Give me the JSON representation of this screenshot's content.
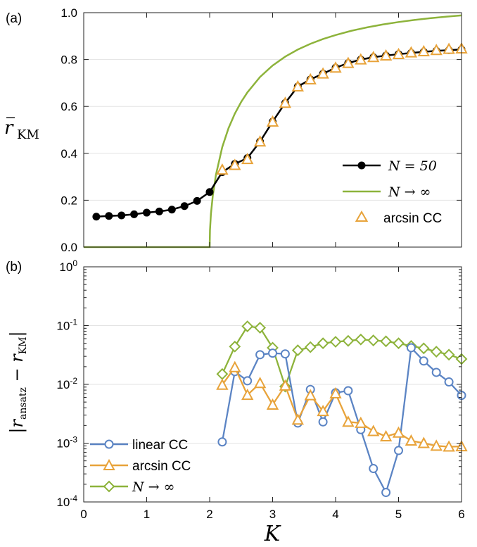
{
  "chart_data": [
    {
      "panel_label": "(a)",
      "type": "line",
      "ylabel": "r̄_KM",
      "xlim": [
        0,
        6
      ],
      "ylim": [
        0,
        1
      ],
      "yticks": [
        "0.0",
        "0.2",
        "0.4",
        "0.6",
        "0.8",
        "1.0"
      ],
      "legend_position": "bottom-right",
      "series": [
        {
          "name": "N = 50",
          "color": "#000000",
          "marker": "filled-circle",
          "x": [
            0.2,
            0.4,
            0.6,
            0.8,
            1.0,
            1.2,
            1.4,
            1.6,
            1.8,
            2.0,
            2.2,
            2.4,
            2.6,
            2.8,
            3.0,
            3.2,
            3.4,
            3.6,
            3.8,
            4.0,
            4.2,
            4.4,
            4.6,
            4.8,
            5.0,
            5.2,
            5.4,
            5.6,
            5.8,
            6.0
          ],
          "y": [
            0.13,
            0.133,
            0.135,
            0.14,
            0.147,
            0.152,
            0.16,
            0.175,
            0.197,
            0.235,
            0.32,
            0.355,
            0.38,
            0.45,
            0.535,
            0.615,
            0.685,
            0.715,
            0.74,
            0.765,
            0.785,
            0.8,
            0.81,
            0.817,
            0.823,
            0.828,
            0.833,
            0.837,
            0.84,
            0.843
          ]
        },
        {
          "name": "N → ∞",
          "color": "#8db33b",
          "marker": "none",
          "x": [
            0,
            2,
            2.005,
            2.02,
            2.05,
            2.1,
            2.2,
            2.3,
            2.4,
            2.5,
            2.6,
            2.8,
            3.0,
            3.2,
            3.4,
            3.6,
            3.8,
            4.0,
            4.25,
            4.5,
            4.75,
            5.0,
            5.25,
            5.5,
            5.75,
            6.0
          ],
          "y": [
            0,
            0,
            0.0707,
            0.1407,
            0.2195,
            0.3086,
            0.4264,
            0.5075,
            0.5693,
            0.619,
            0.6602,
            0.7256,
            0.7746,
            0.8125,
            0.8427,
            0.8672,
            0.8875,
            0.9045,
            0.9226,
            0.9374,
            0.9497,
            0.96,
            0.9687,
            0.9762,
            0.9828,
            0.9885
          ]
        },
        {
          "name": "arcsin CC",
          "color": "#e8a33a",
          "marker": "open-triangle",
          "x": [
            2.2,
            2.4,
            2.6,
            2.8,
            3.0,
            3.2,
            3.4,
            3.6,
            3.8,
            4.0,
            4.2,
            4.4,
            4.6,
            4.8,
            5.0,
            5.2,
            5.4,
            5.6,
            5.8,
            6.0
          ],
          "y": [
            0.33,
            0.35,
            0.375,
            0.45,
            0.535,
            0.615,
            0.685,
            0.715,
            0.74,
            0.765,
            0.785,
            0.8,
            0.81,
            0.817,
            0.823,
            0.83,
            0.835,
            0.84,
            0.845,
            0.847
          ]
        }
      ]
    },
    {
      "panel_label": "(b)",
      "type": "line",
      "xlabel": "K",
      "ylabel": "|r̄_ansatz − r̄_KM|",
      "xlim": [
        0,
        6
      ],
      "ylim": [
        0.0001,
        1
      ],
      "y_scale": "log",
      "xticks": [
        "0",
        "1",
        "2",
        "3",
        "4",
        "5",
        "6"
      ],
      "yticks": [
        "10-4",
        "10-3",
        "10-2",
        "10-1",
        "100"
      ],
      "legend_position": "bottom-left",
      "series": [
        {
          "name": "linear CC",
          "color": "#5b84c4",
          "marker": "open-circle",
          "x": [
            2.2,
            2.4,
            2.6,
            2.8,
            3.0,
            3.2,
            3.4,
            3.6,
            3.8,
            4.0,
            4.2,
            4.4,
            4.6,
            4.8,
            5.0,
            5.2,
            5.4,
            5.6,
            5.8,
            6.0
          ],
          "y": [
            0.00105,
            0.0165,
            0.0115,
            0.032,
            0.034,
            0.033,
            0.0022,
            0.0082,
            0.0023,
            0.0072,
            0.0078,
            0.0017,
            0.00037,
            0.000145,
            0.00075,
            0.042,
            0.025,
            0.016,
            0.011,
            0.0065
          ]
        },
        {
          "name": "arcsin CC",
          "color": "#e8a33a",
          "marker": "open-triangle",
          "x": [
            2.2,
            2.4,
            2.6,
            2.8,
            3.0,
            3.2,
            3.4,
            3.6,
            3.8,
            4.0,
            4.2,
            4.4,
            4.6,
            4.8,
            5.0,
            5.2,
            5.4,
            5.6,
            5.8,
            6.0
          ],
          "y": [
            0.0098,
            0.0195,
            0.0066,
            0.0105,
            0.0045,
            0.0095,
            0.0025,
            0.0065,
            0.0035,
            0.007,
            0.0023,
            0.0022,
            0.0016,
            0.0013,
            0.0015,
            0.0011,
            0.001,
            0.0009,
            0.00087,
            0.00088
          ]
        },
        {
          "name": "N → ∞",
          "color": "#8db33b",
          "marker": "open-diamond",
          "x": [
            2.2,
            2.4,
            2.6,
            2.8,
            3.0,
            3.2,
            3.4,
            3.6,
            3.8,
            4.0,
            4.2,
            4.4,
            4.6,
            4.8,
            5.0,
            5.2,
            5.4,
            5.6,
            5.8,
            6.0
          ],
          "y": [
            0.015,
            0.044,
            0.097,
            0.092,
            0.042,
            0.0092,
            0.038,
            0.043,
            0.05,
            0.053,
            0.055,
            0.058,
            0.056,
            0.054,
            0.05,
            0.045,
            0.041,
            0.036,
            0.032,
            0.027
          ]
        }
      ]
    }
  ]
}
